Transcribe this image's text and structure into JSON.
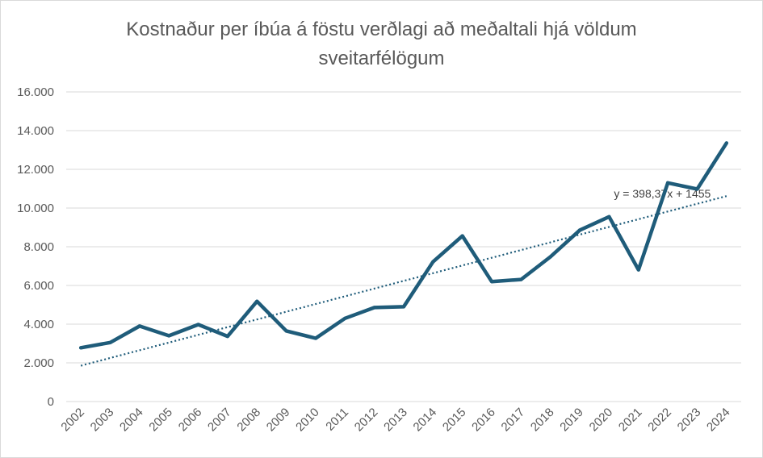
{
  "chart_data": {
    "type": "line",
    "title_line1": "Kostnaður per íbúa á föstu verðlagi að meðaltali hjá völdum",
    "title_line2": "sveitarfélögum",
    "x": [
      "2002",
      "2003",
      "2004",
      "2005",
      "2006",
      "2007",
      "2008",
      "2009",
      "2010",
      "2011",
      "2012",
      "2013",
      "2014",
      "2015",
      "2016",
      "2017",
      "2018",
      "2019",
      "2020",
      "2021",
      "2022",
      "2023",
      "2024"
    ],
    "series": [
      {
        "values": [
          2780,
          3050,
          3900,
          3400,
          3980,
          3370,
          5180,
          3650,
          3270,
          4300,
          4860,
          4900,
          7220,
          8560,
          6200,
          6310,
          7480,
          8860,
          9550,
          6810,
          11300,
          10980,
          13360
        ],
        "color": "#1f5c7a"
      }
    ],
    "trendline": {
      "type": "linear",
      "equation": "y = 398,37x + 1455",
      "slope": 398.37,
      "intercept": 1455,
      "color": "#1f5c7a"
    },
    "ylim": [
      0,
      16000
    ],
    "yticks": [
      0,
      2000,
      4000,
      6000,
      8000,
      10000,
      12000,
      14000,
      16000
    ],
    "ytick_labels": [
      "0",
      "2.000",
      "4.000",
      "6.000",
      "8.000",
      "10.000",
      "12.000",
      "14.000",
      "16.000"
    ],
    "grid": true,
    "legend": "none"
  }
}
